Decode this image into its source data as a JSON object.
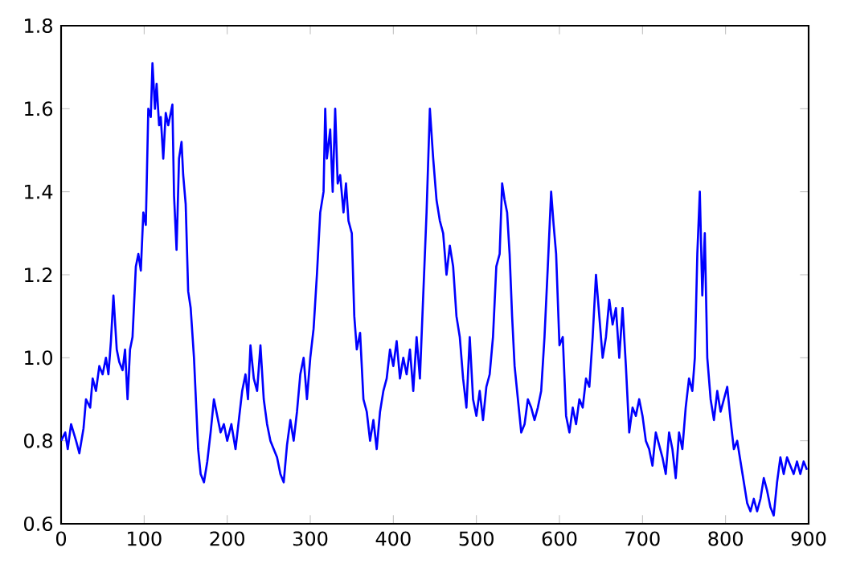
{
  "chart_data": {
    "type": "line",
    "color": "#0000ff",
    "x": [
      0,
      5,
      8,
      12,
      18,
      22,
      27,
      30,
      35,
      38,
      42,
      46,
      50,
      54,
      57,
      60,
      63,
      67,
      70,
      74,
      77,
      80,
      83,
      86,
      90,
      93,
      96,
      99,
      102,
      105,
      108,
      110,
      113,
      115,
      118,
      120,
      123,
      126,
      129,
      131,
      134,
      136,
      139,
      142,
      145,
      147,
      150,
      153,
      156,
      160,
      165,
      168,
      172,
      176,
      180,
      184,
      188,
      192,
      196,
      200,
      205,
      210,
      214,
      218,
      222,
      225,
      228,
      232,
      236,
      240,
      244,
      248,
      252,
      256,
      260,
      264,
      268,
      272,
      276,
      280,
      284,
      288,
      292,
      296,
      300,
      304,
      308,
      312,
      316,
      318,
      320,
      324,
      327,
      330,
      333,
      336,
      340,
      343,
      346,
      350,
      353,
      356,
      360,
      364,
      368,
      372,
      376,
      380,
      384,
      388,
      392,
      396,
      400,
      404,
      408,
      412,
      416,
      420,
      424,
      428,
      432,
      436,
      440,
      444,
      448,
      452,
      456,
      460,
      464,
      468,
      472,
      476,
      480,
      484,
      488,
      492,
      496,
      500,
      504,
      508,
      512,
      516,
      520,
      524,
      528,
      531,
      534,
      537,
      540,
      543,
      546,
      550,
      554,
      558,
      562,
      566,
      570,
      574,
      578,
      582,
      586,
      590,
      593,
      596,
      600,
      604,
      608,
      612,
      616,
      620,
      624,
      628,
      632,
      636,
      640,
      644,
      648,
      652,
      656,
      660,
      664,
      668,
      672,
      676,
      680,
      684,
      688,
      692,
      696,
      700,
      704,
      708,
      712,
      716,
      720,
      724,
      728,
      732,
      736,
      740,
      744,
      748,
      752,
      756,
      760,
      763,
      766,
      769,
      772,
      775,
      778,
      782,
      786,
      790,
      794,
      798,
      802,
      806,
      810,
      814,
      818,
      822,
      826,
      830,
      834,
      838,
      842,
      846,
      850,
      854,
      858,
      862,
      866,
      870,
      874,
      878,
      882,
      886,
      890,
      894,
      898
    ],
    "values": [
      0.8,
      0.82,
      0.78,
      0.84,
      0.8,
      0.77,
      0.83,
      0.9,
      0.88,
      0.95,
      0.92,
      0.98,
      0.96,
      1.0,
      0.96,
      1.04,
      1.15,
      1.02,
      0.99,
      0.97,
      1.02,
      0.9,
      1.02,
      1.05,
      1.22,
      1.25,
      1.21,
      1.35,
      1.32,
      1.6,
      1.58,
      1.71,
      1.6,
      1.66,
      1.56,
      1.58,
      1.48,
      1.59,
      1.56,
      1.58,
      1.61,
      1.39,
      1.26,
      1.48,
      1.52,
      1.44,
      1.37,
      1.16,
      1.12,
      1.0,
      0.78,
      0.72,
      0.7,
      0.75,
      0.82,
      0.9,
      0.86,
      0.82,
      0.84,
      0.8,
      0.84,
      0.78,
      0.85,
      0.92,
      0.96,
      0.9,
      1.03,
      0.95,
      0.92,
      1.03,
      0.9,
      0.84,
      0.8,
      0.78,
      0.76,
      0.72,
      0.7,
      0.79,
      0.85,
      0.8,
      0.87,
      0.96,
      1.0,
      0.9,
      1.0,
      1.07,
      1.2,
      1.35,
      1.4,
      1.6,
      1.48,
      1.55,
      1.4,
      1.6,
      1.42,
      1.44,
      1.35,
      1.42,
      1.33,
      1.3,
      1.1,
      1.02,
      1.06,
      0.9,
      0.87,
      0.8,
      0.85,
      0.78,
      0.87,
      0.92,
      0.95,
      1.02,
      0.98,
      1.04,
      0.95,
      1.0,
      0.96,
      1.02,
      0.92,
      1.05,
      0.95,
      1.15,
      1.35,
      1.6,
      1.48,
      1.38,
      1.33,
      1.3,
      1.2,
      1.27,
      1.22,
      1.1,
      1.05,
      0.95,
      0.88,
      1.05,
      0.9,
      0.86,
      0.92,
      0.85,
      0.93,
      0.96,
      1.05,
      1.22,
      1.25,
      1.42,
      1.38,
      1.35,
      1.25,
      1.1,
      0.98,
      0.9,
      0.82,
      0.84,
      0.9,
      0.88,
      0.85,
      0.88,
      0.92,
      1.05,
      1.22,
      1.4,
      1.32,
      1.25,
      1.03,
      1.05,
      0.86,
      0.82,
      0.88,
      0.84,
      0.9,
      0.88,
      0.95,
      0.93,
      1.05,
      1.2,
      1.1,
      1.0,
      1.05,
      1.14,
      1.08,
      1.12,
      1.0,
      1.12,
      0.98,
      0.82,
      0.88,
      0.86,
      0.9,
      0.86,
      0.8,
      0.78,
      0.74,
      0.82,
      0.79,
      0.76,
      0.72,
      0.82,
      0.78,
      0.71,
      0.82,
      0.78,
      0.88,
      0.95,
      0.92,
      1.0,
      1.25,
      1.4,
      1.15,
      1.3,
      1.0,
      0.9,
      0.85,
      0.92,
      0.87,
      0.9,
      0.93,
      0.85,
      0.78,
      0.8,
      0.75,
      0.7,
      0.65,
      0.63,
      0.66,
      0.63,
      0.66,
      0.71,
      0.68,
      0.64,
      0.62,
      0.7,
      0.76,
      0.72,
      0.76,
      0.74,
      0.72,
      0.75,
      0.72,
      0.75,
      0.73
    ],
    "xlim": [
      0,
      900
    ],
    "ylim": [
      0.6,
      1.8
    ],
    "xticks": [
      0,
      100,
      200,
      300,
      400,
      500,
      600,
      700,
      800,
      900
    ],
    "yticks": [
      0.6,
      0.8,
      {
        "value": 1.0,
        "label": "1.0"
      },
      1.2,
      1.4,
      1.6,
      1.8
    ]
  }
}
